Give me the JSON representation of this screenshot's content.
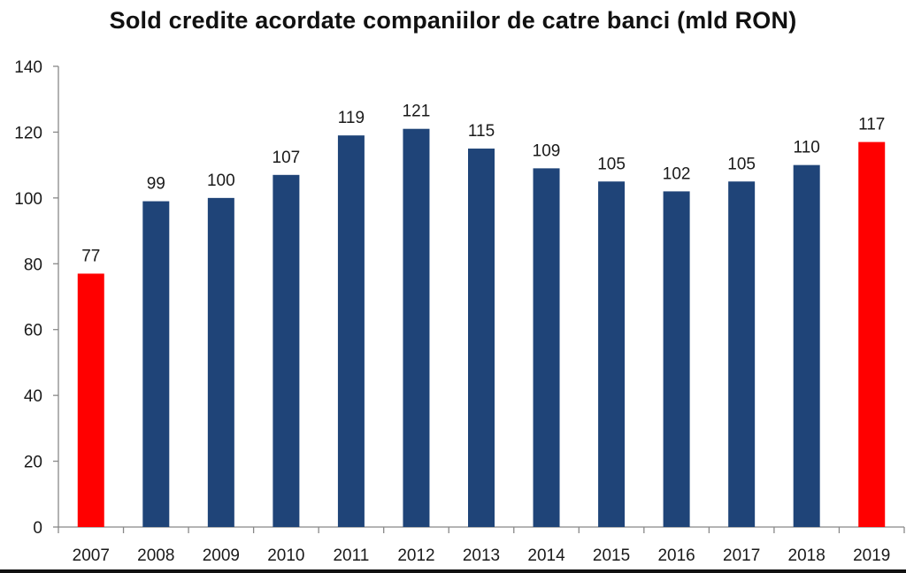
{
  "chart_data": {
    "type": "bar",
    "title": "Sold credite acordate companiilor de catre banci (mld RON)",
    "xlabel": "",
    "ylabel": "",
    "categories": [
      "2007",
      "2008",
      "2009",
      "2010",
      "2011",
      "2012",
      "2013",
      "2014",
      "2015",
      "2016",
      "2017",
      "2018",
      "2019"
    ],
    "values": [
      77,
      99,
      100,
      107,
      119,
      121,
      115,
      109,
      105,
      102,
      105,
      110,
      117
    ],
    "value_labels": [
      "77",
      "99",
      "100",
      "107",
      "119",
      "121",
      "115",
      "109",
      "105",
      "102",
      "105",
      "110",
      "117"
    ],
    "bar_colors": [
      "#ff0000",
      "#1f4478",
      "#1f4478",
      "#1f4478",
      "#1f4478",
      "#1f4478",
      "#1f4478",
      "#1f4478",
      "#1f4478",
      "#1f4478",
      "#1f4478",
      "#1f4478",
      "#ff0000"
    ],
    "ylim": [
      0,
      140
    ],
    "yticks": [
      "0",
      "20",
      "40",
      "60",
      "80",
      "100",
      "120",
      "140"
    ],
    "grid": false,
    "legend": "none"
  },
  "colors": {
    "highlight": "#ff0000",
    "primary": "#1f4478",
    "axis": "#888888"
  }
}
